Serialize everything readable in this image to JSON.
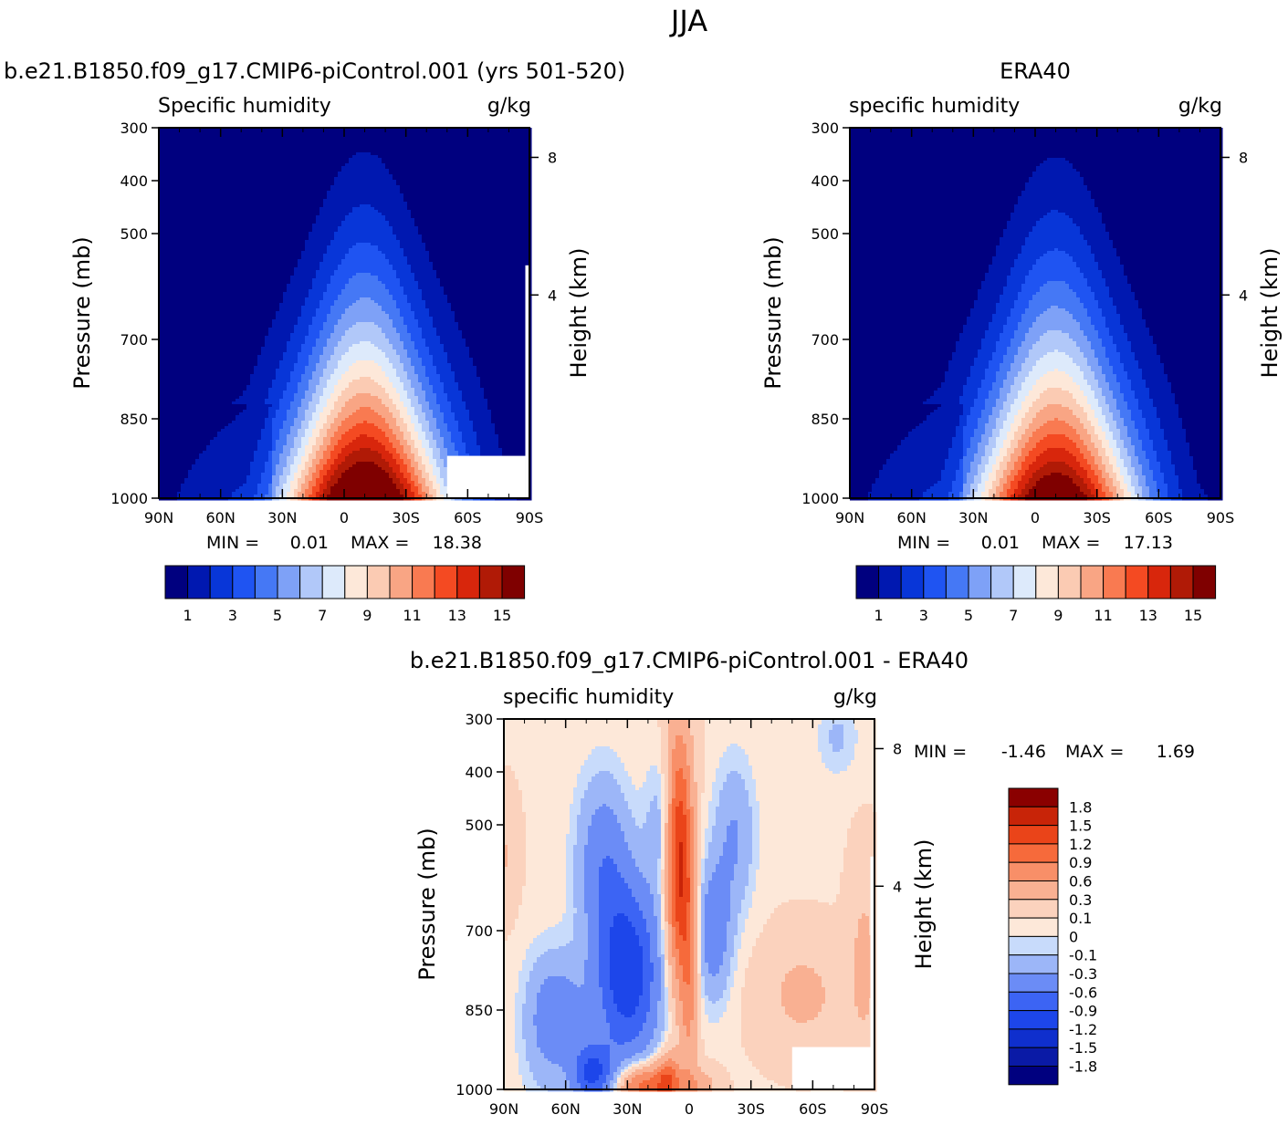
{
  "figure_title": "JJA",
  "colors": {
    "abs_levels": [
      "#00007f",
      "#0018b0",
      "#0836d8",
      "#1f54f2",
      "#4578f5",
      "#7ea1f7",
      "#b1c8f9",
      "#ddeafb",
      "#fde8d9",
      "#fbcbb3",
      "#f9a584",
      "#f97a51",
      "#f44a22",
      "#d8260c",
      "#b01a06",
      "#7f0000"
    ],
    "diff_levels": [
      "#00007f",
      "#0a1aa6",
      "#0f2fcd",
      "#1d46ea",
      "#3c64f4",
      "#6b8cf6",
      "#9cb6f8",
      "#c8dbfb",
      "#fde8d9",
      "#fbd2bd",
      "#f9b092",
      "#f88f68",
      "#f66a3b",
      "#ea4419",
      "#c82408",
      "#8a0000"
    ]
  },
  "chart_data": [
    {
      "type": "heatmap",
      "panel_title": "b.e21.B1850.f09_g17.CMIP6-piControl.001 (yrs 501-520)",
      "left_label": "Specific humidity",
      "right_label": "g/kg",
      "xlabel": "",
      "ylabel": "Pressure (mb)",
      "y2label": "Height (km)",
      "x_ticks": [
        "90N",
        "60N",
        "30N",
        "0",
        "30S",
        "60S",
        "90S"
      ],
      "y_ticks": [
        "300",
        "400",
        "500",
        "700",
        "850",
        "1000"
      ],
      "y2_ticks": [
        "8",
        "4"
      ],
      "stats_min_label": "MIN =",
      "stats_min": "0.01",
      "stats_max_label": "MAX =",
      "stats_max": "18.38",
      "colorbar_labels": [
        "1",
        "3",
        "5",
        "7",
        "9",
        "11",
        "13",
        "15"
      ],
      "peak_lat": -10,
      "peak_value": 18.38,
      "max_value": 18.38
    },
    {
      "type": "heatmap",
      "panel_title": "ERA40",
      "left_label": "specific humidity",
      "right_label": "g/kg",
      "xlabel": "",
      "ylabel": "Pressure (mb)",
      "y2label": "Height (km)",
      "x_ticks": [
        "90N",
        "60N",
        "30N",
        "0",
        "30S",
        "60S",
        "90S"
      ],
      "y_ticks": [
        "300",
        "400",
        "500",
        "700",
        "850",
        "1000"
      ],
      "y2_ticks": [
        "8",
        "4"
      ],
      "stats_min_label": "MIN =",
      "stats_min": "0.01",
      "stats_max_label": "MAX =",
      "stats_max": "17.13",
      "colorbar_labels": [
        "1",
        "3",
        "5",
        "7",
        "9",
        "11",
        "13",
        "15"
      ],
      "peak_lat": -10,
      "peak_value": 17.13,
      "max_value": 17.13
    },
    {
      "type": "heatmap",
      "panel_title": "b.e21.B1850.f09_g17.CMIP6-piControl.001 - ERA40",
      "left_label": "specific humidity",
      "right_label": "g/kg",
      "xlabel": "",
      "ylabel": "Pressure (mb)",
      "y2label": "Height (km)",
      "x_ticks": [
        "90N",
        "60N",
        "30N",
        "0",
        "30S",
        "60S",
        "90S"
      ],
      "y_ticks": [
        "300",
        "400",
        "500",
        "700",
        "850",
        "1000"
      ],
      "y2_ticks": [
        "8",
        "4"
      ],
      "stats_min_label": "MIN =",
      "stats_min": "-1.46",
      "stats_max_label": "MAX =",
      "stats_max": "1.69",
      "colorbar_labels": [
        "1.8",
        "1.5",
        "1.2",
        "0.9",
        "0.6",
        "0.3",
        "0.1",
        "0",
        "-0.1",
        "-0.3",
        "-0.6",
        "-0.9",
        "-1.2",
        "-1.5",
        "-1.8"
      ]
    }
  ]
}
